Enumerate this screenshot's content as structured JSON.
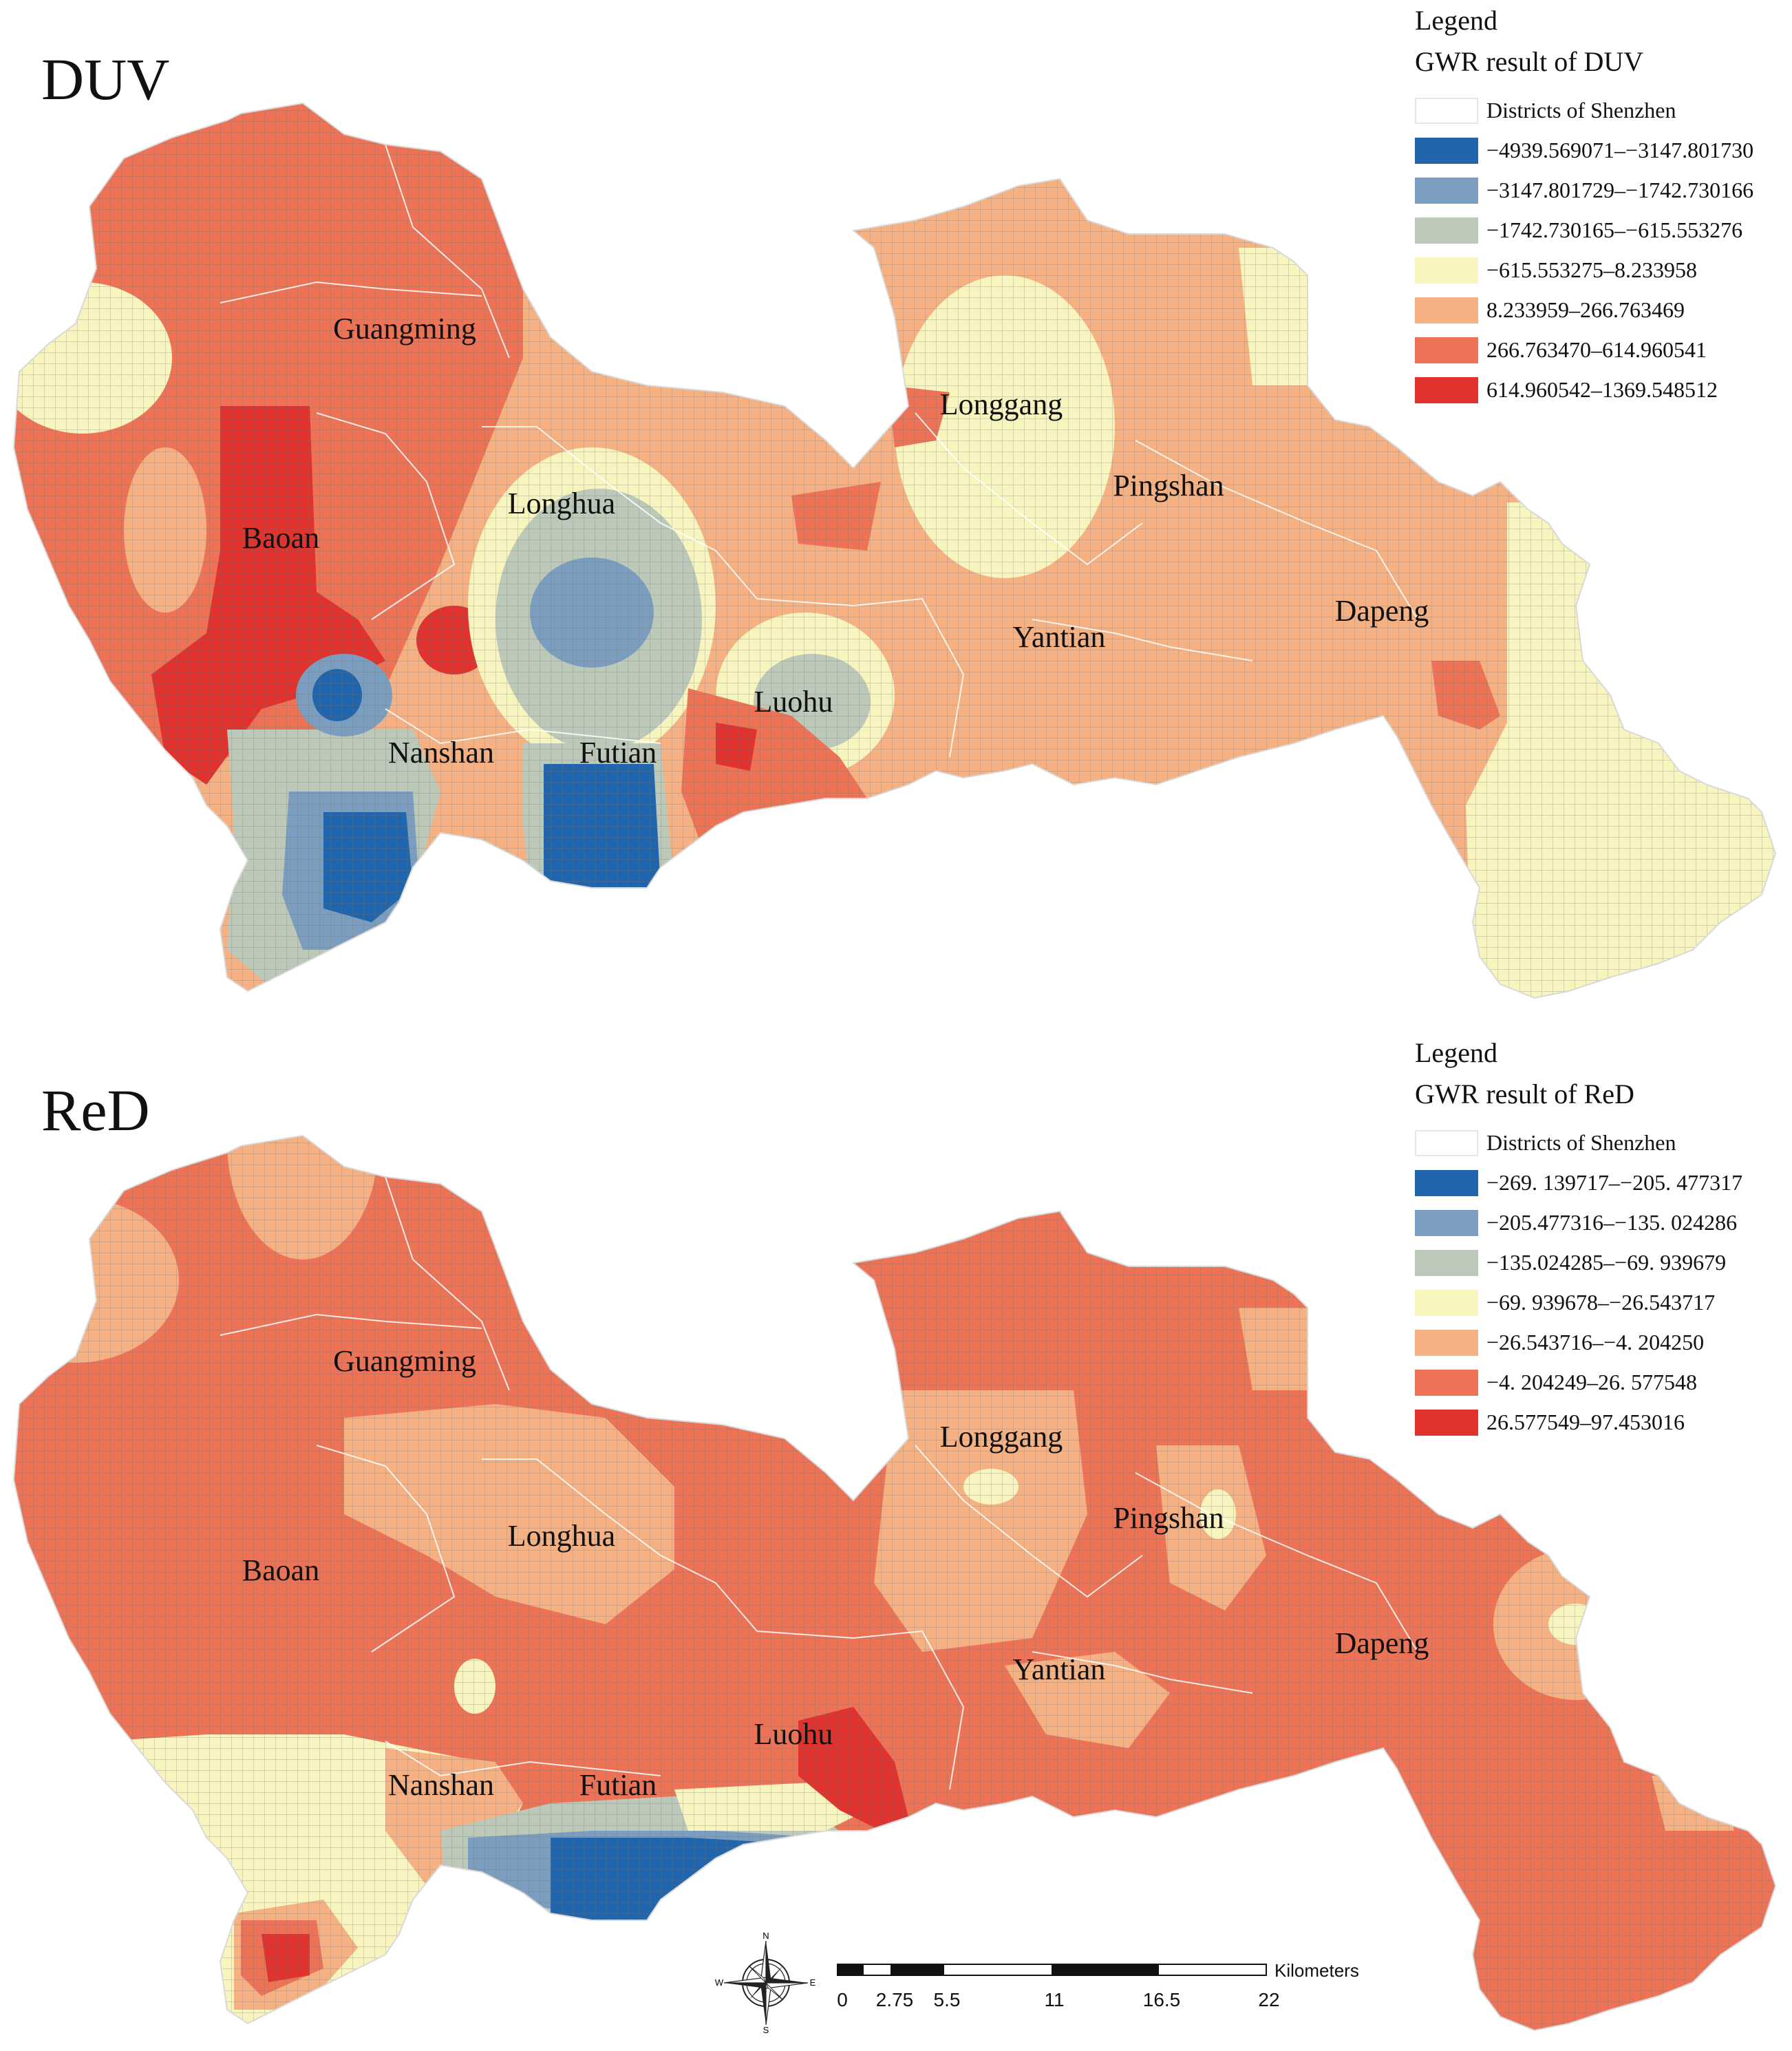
{
  "maps": [
    {
      "title": "DUV",
      "legend": {
        "title": "Legend",
        "subtitle": "GWR result of DUV",
        "boundary_label": "Districts of Shenzhen",
        "classes": [
          {
            "label": "−4939.569071–−3147.801730",
            "color": "#2166ac"
          },
          {
            "label": "−3147.801729–−1742.730166",
            "color": "#7b9ec0"
          },
          {
            "label": "−1742.730165–−615.553276",
            "color": "#bcc9b9"
          },
          {
            "label": "−615.553275–8.233958",
            "color": "#f7f4bd"
          },
          {
            "label": "8.233959–266.763469",
            "color": "#f6b183"
          },
          {
            "label": "266.763470–614.960541",
            "color": "#ee7255"
          },
          {
            "label": "614.960542–1369.548512",
            "color": "#e2322d"
          }
        ]
      },
      "districts": [
        "Guangming",
        "Longgang",
        "Pingshan",
        "Longhua",
        "Baoan",
        "Dapeng",
        "Yantian",
        "Luohu",
        "Nanshan",
        "Futian"
      ]
    },
    {
      "title": "ReD",
      "legend": {
        "title": "Legend",
        "subtitle": "GWR result of ReD",
        "boundary_label": "Districts of Shenzhen",
        "classes": [
          {
            "label": "−269. 139717–−205. 477317",
            "color": "#2166ac"
          },
          {
            "label": "−205.477316–−135. 024286",
            "color": "#7b9ec0"
          },
          {
            "label": "−135.024285–−69. 939679",
            "color": "#bcc9b9"
          },
          {
            "label": "−69. 939678–−26.543717",
            "color": "#f7f4bd"
          },
          {
            "label": "−26.543716–−4. 204250",
            "color": "#f6b183"
          },
          {
            "label": "−4. 204249–26. 577548",
            "color": "#ee7255"
          },
          {
            "label": "26.577549–97.453016",
            "color": "#e2322d"
          }
        ]
      },
      "districts": [
        "Guangming",
        "Longgang",
        "Longhua",
        "Pingshan",
        "Baoan",
        "Dapeng",
        "Yantian",
        "Luohu",
        "Nanshan",
        "Futian"
      ]
    }
  ],
  "compass": {
    "n": "N",
    "e": "E",
    "s": "S",
    "w": "W"
  },
  "scale_bar": {
    "unit": "Kilometers",
    "ticks": [
      "0",
      "2.75",
      "5.5",
      "11",
      "16.5",
      "22"
    ]
  }
}
